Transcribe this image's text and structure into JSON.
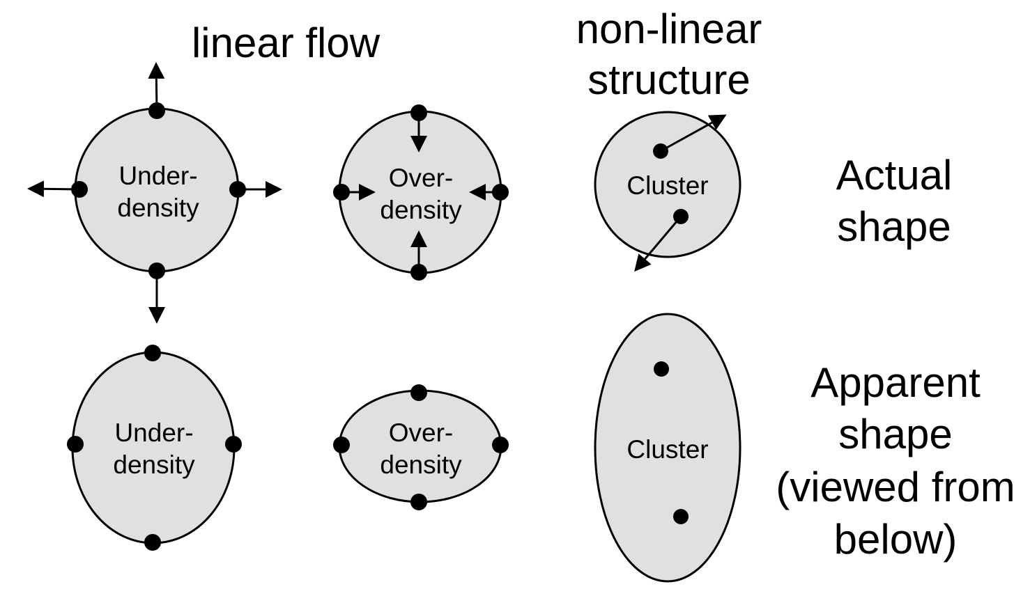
{
  "headings": {
    "linear_flow": "linear flow",
    "non_linear_line1": "non-linear",
    "non_linear_line2": "structure"
  },
  "row_labels": {
    "actual_line1": "Actual",
    "actual_line2": "shape",
    "apparent_line1": "Apparent",
    "apparent_line2": "shape",
    "apparent_line3": "(viewed from",
    "apparent_line4": "below)"
  },
  "shapes": {
    "underdensity_actual": {
      "line1": "Under-",
      "line2": "density"
    },
    "overdensity_actual": {
      "line1": "Over-",
      "line2": "density"
    },
    "cluster_actual": {
      "line1": "Cluster"
    },
    "underdensity_apparent": {
      "line1": "Under-",
      "line2": "density"
    },
    "overdensity_apparent": {
      "line1": "Over-",
      "line2": "density"
    },
    "cluster_apparent": {
      "line1": "Cluster"
    }
  },
  "colors": {
    "fill": "#e0e0e0",
    "stroke": "#000000",
    "background": "#ffffff"
  }
}
